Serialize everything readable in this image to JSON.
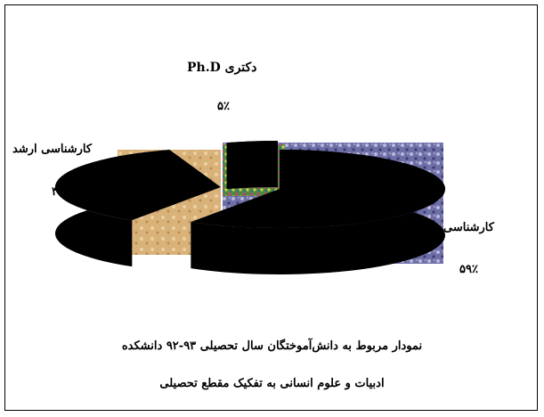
{
  "chart_data": {
    "type": "pie",
    "style": "3d-exploded",
    "categories": [
      "کارشناسی",
      "کارشناسی ارشد",
      "دکتری Ph.D"
    ],
    "values": [
      59,
      36,
      5
    ],
    "value_labels": [
      "۵۹٪",
      "۳۶٪",
      "۵٪"
    ],
    "title_lines": [
      "نمودار مربوط به دانش‌آموختگان سال تحصیلی ۹۳-۹۲ دانشکده",
      "ادبیات و علوم انسانی به تفکیک مقطع تحصیلی"
    ],
    "legend": "none",
    "colors": [
      "#6f6fa8",
      "#d9b27a",
      "#4f8a3c"
    ]
  }
}
